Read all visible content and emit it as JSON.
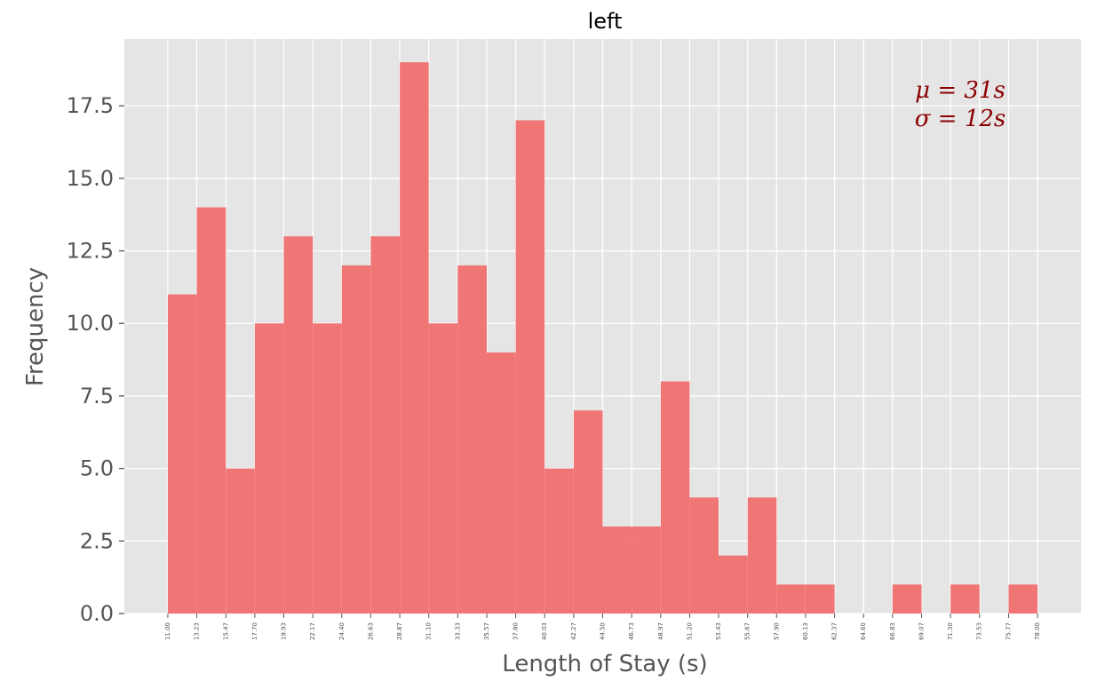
{
  "chart_data": {
    "type": "bar",
    "title": "left",
    "xlabel": "Length of Stay (s)",
    "ylabel": "Frequency",
    "ylim": [
      0,
      19.8
    ],
    "xlim": [
      7.65,
      81.35
    ],
    "grid": true,
    "bin_edges": [
      11.0,
      13.23,
      15.47,
      17.7,
      19.93,
      22.17,
      24.4,
      26.63,
      28.87,
      31.1,
      33.33,
      35.57,
      37.8,
      40.03,
      42.27,
      44.5,
      46.73,
      48.97,
      51.2,
      53.43,
      55.67,
      57.9,
      60.13,
      62.37,
      64.6,
      66.83,
      69.07,
      71.3,
      73.53,
      75.77,
      78.0
    ],
    "values": [
      11,
      14,
      5,
      10,
      13,
      10,
      12,
      13,
      19,
      10,
      12,
      9,
      17,
      5,
      7,
      3,
      3,
      8,
      4,
      2,
      4,
      1,
      1,
      0,
      0,
      1,
      0,
      1,
      0,
      1
    ],
    "yticks": [
      0.0,
      2.5,
      5.0,
      7.5,
      10.0,
      12.5,
      15.0,
      17.5
    ],
    "ytick_labels": [
      "0.0",
      "2.5",
      "5.0",
      "7.5",
      "10.0",
      "12.5",
      "15.0",
      "17.5"
    ],
    "xtick_labels": [
      "11.00",
      "13.23",
      "15.47",
      "17.70",
      "19.93",
      "22.17",
      "24.40",
      "26.63",
      "28.87",
      "31.10",
      "33.33",
      "35.57",
      "37.80",
      "40.03",
      "42.27",
      "44.50",
      "46.73",
      "48.97",
      "51.20",
      "53.43",
      "55.67",
      "57.90",
      "60.13",
      "62.37",
      "64.60",
      "66.83",
      "69.07",
      "71.30",
      "73.53",
      "75.77",
      "78.00"
    ],
    "annotations": [
      "μ = 31s",
      "σ = 12s"
    ],
    "legend": "none",
    "colors": {
      "bar": "#f07070",
      "plot_bg": "#e5e5e5",
      "grid": "#ffffff",
      "annotation": "#8b0000",
      "tick": "#555555"
    }
  }
}
